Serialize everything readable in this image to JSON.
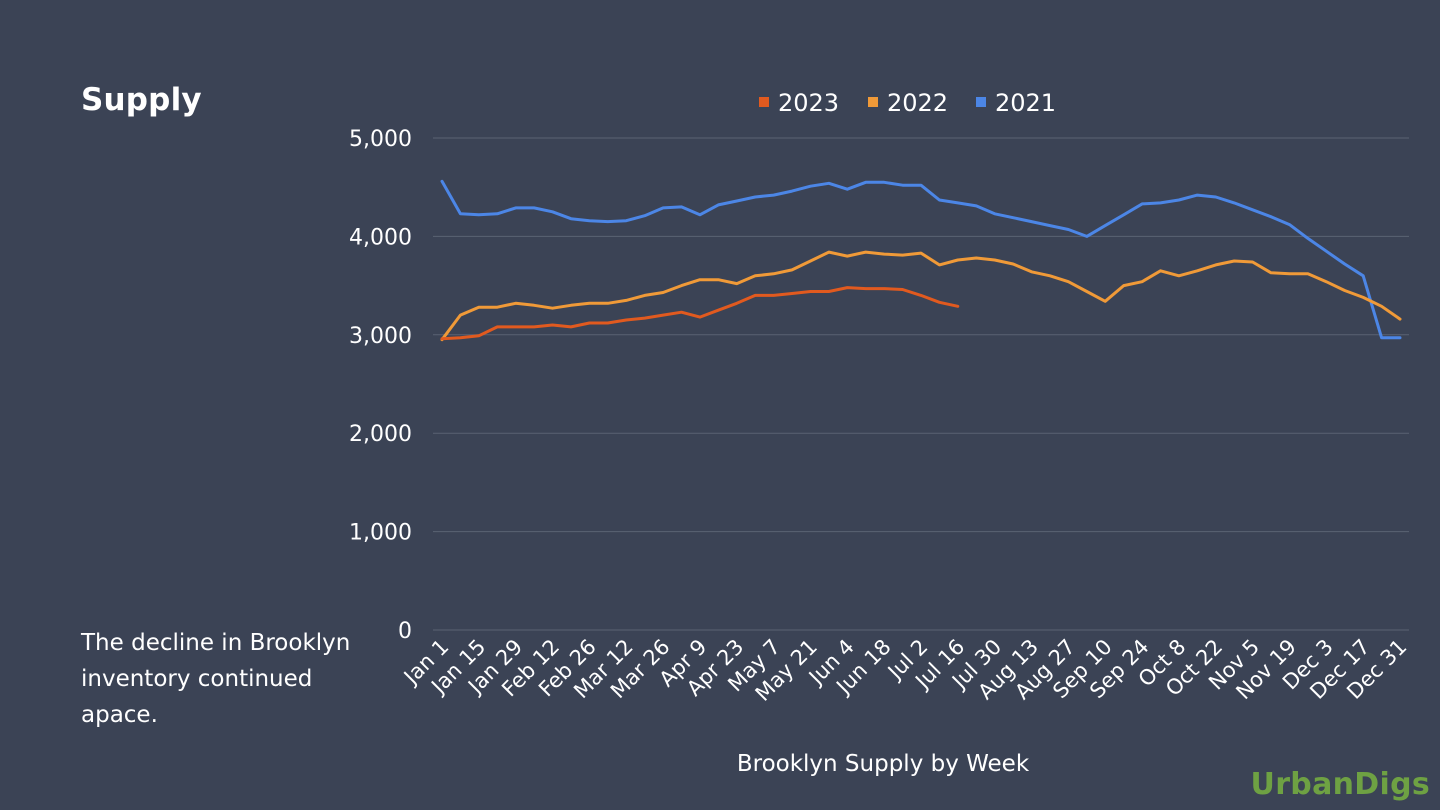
{
  "slide": {
    "title": "Supply",
    "caption": "The decline in Brooklyn inventory continued apace.",
    "brand": "UrbanDigs"
  },
  "colors": {
    "background": "#3b4355",
    "grid": "#5b6373",
    "brand": "#6ea143",
    "s2023": "#e15a1f",
    "s2022": "#f09a38",
    "s2021": "#4c86e6"
  },
  "chart_data": {
    "type": "line",
    "title": "",
    "xlabel": "Brooklyn Supply by Week",
    "ylabel": "",
    "ylim": [
      0,
      5000
    ],
    "yticks": [
      0,
      1000,
      2000,
      3000,
      4000,
      5000
    ],
    "ytick_labels": [
      "0",
      "1,000",
      "2,000",
      "3,000",
      "4,000",
      "5,000"
    ],
    "grid": true,
    "legend": "top",
    "x_tick_labels": [
      "Jan 1",
      "Jan 15",
      "Jan 29",
      "Feb 12",
      "Feb 26",
      "Mar 12",
      "Mar 26",
      "Apr 9",
      "Apr 23",
      "May 7",
      "May 21",
      "Jun 4",
      "Jun 18",
      "Jul 2",
      "Jul 16",
      "Jul 30",
      "Aug 13",
      "Aug 27",
      "Sep 10",
      "Sep 24",
      "Oct 8",
      "Oct 22",
      "Nov 5",
      "Nov 19",
      "Dec 3",
      "Dec 17",
      "Dec 31"
    ],
    "num_weeks": 53,
    "series": [
      {
        "name": "2023",
        "color": "#e15a1f",
        "values": [
          2960,
          2970,
          2990,
          3080,
          3080,
          3080,
          3100,
          3080,
          3120,
          3120,
          3150,
          3170,
          3200,
          3230,
          3180,
          3250,
          3320,
          3400,
          3400,
          3420,
          3440,
          3440,
          3480,
          3470,
          3470,
          3460,
          3400,
          3330,
          3290
        ]
      },
      {
        "name": "2022",
        "color": "#f09a38",
        "values": [
          2950,
          3200,
          3280,
          3280,
          3320,
          3300,
          3270,
          3300,
          3320,
          3320,
          3350,
          3400,
          3430,
          3500,
          3560,
          3560,
          3520,
          3600,
          3620,
          3660,
          3750,
          3840,
          3800,
          3840,
          3820,
          3810,
          3830,
          3710,
          3760,
          3780,
          3760,
          3720,
          3640,
          3600,
          3540,
          3440,
          3340,
          3500,
          3540,
          3650,
          3600,
          3650,
          3710,
          3750,
          3740,
          3630,
          3620,
          3620,
          3540,
          3450,
          3380,
          3290,
          3160
        ]
      },
      {
        "name": "2021",
        "color": "#4c86e6",
        "values": [
          4560,
          4230,
          4220,
          4230,
          4290,
          4290,
          4250,
          4180,
          4160,
          4150,
          4160,
          4210,
          4290,
          4300,
          4220,
          4320,
          4360,
          4400,
          4420,
          4460,
          4510,
          4540,
          4480,
          4550,
          4550,
          4520,
          4520,
          4370,
          4340,
          4310,
          4230,
          4190,
          4150,
          4110,
          4070,
          4000,
          4110,
          4220,
          4330,
          4340,
          4370,
          4420,
          4400,
          4340,
          4270,
          4200,
          4120,
          3980,
          3850,
          3720,
          3600,
          2970,
          2970
        ]
      }
    ]
  }
}
